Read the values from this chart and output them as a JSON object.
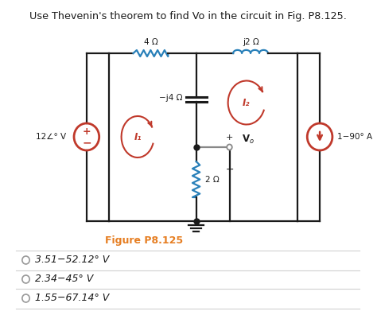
{
  "title": "Use Thevenin's theorem to find Vo in the circuit in Fig. P8.125.",
  "figure_label": "Figure P8.125",
  "answer_options": [
    "3.51−52.12° V",
    "2.34−45° V",
    "1.55−67.14° V"
  ],
  "resistor_top_left_label": "4 Ω",
  "resistor_top_right_label": "j2 Ω",
  "capacitor_label": "−j4 Ω",
  "resistor_bottom_label": "2 Ω",
  "voltage_source_label": "12∠° V",
  "current_source_label": "1−90° A",
  "mesh1_label": "I₁",
  "mesh2_label": "I₂",
  "vo_label": "V",
  "colors": {
    "bg": "#ffffff",
    "black": "#1a1a1a",
    "dark_gray": "#333333",
    "red_circ": "#c0392b",
    "blue_wire": "#2980b9",
    "blue_res": "#2980b9",
    "orange": "#e67e22",
    "gray_wire": "#888888",
    "option_gray": "#999999",
    "divider": "#d0d0d0"
  }
}
